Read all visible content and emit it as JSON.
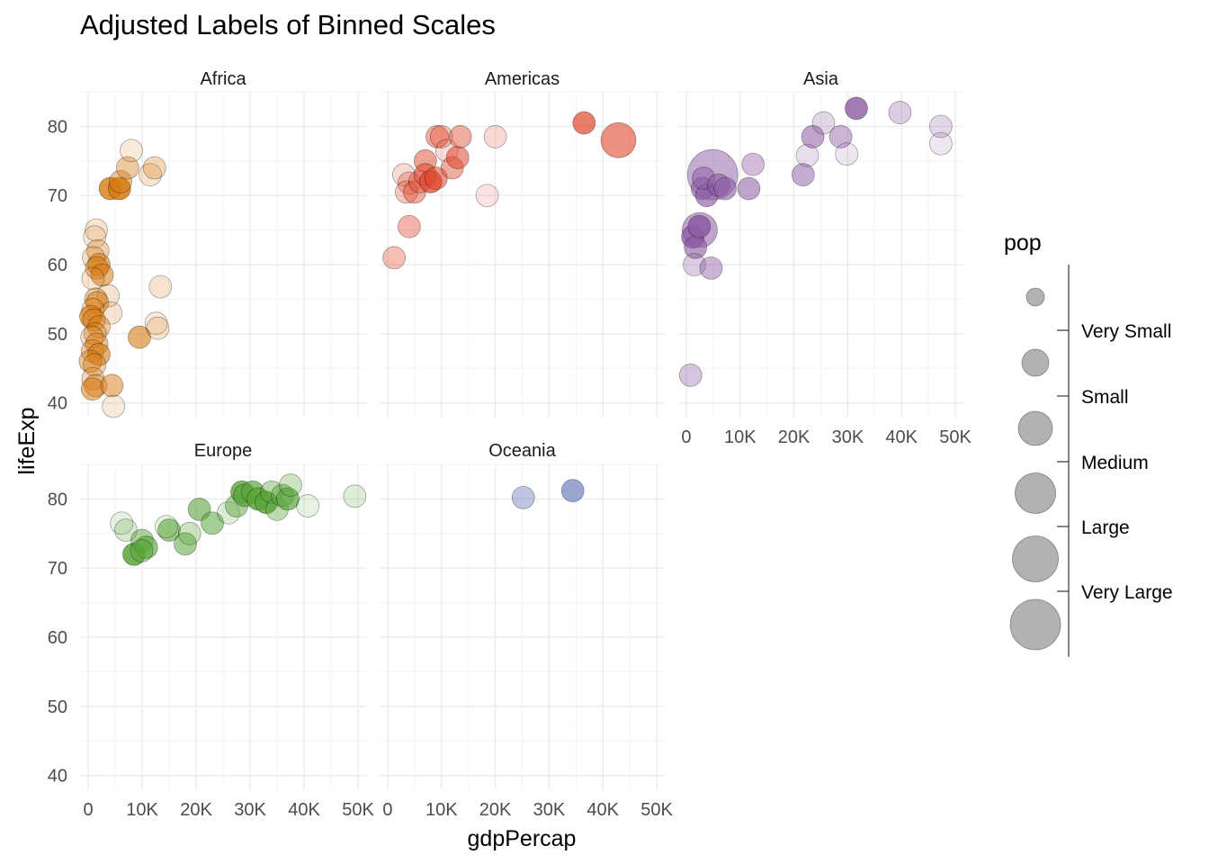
{
  "title": "Adjusted Labels of Binned Scales",
  "chart_data": {
    "type": "scatter",
    "title": "Adjusted Labels of Binned Scales",
    "xlabel": "gdpPercap",
    "ylabel": "lifeExp",
    "xlim": [
      -1500,
      51500
    ],
    "ylim": [
      38,
      85
    ],
    "x_ticks": [
      0,
      10000,
      20000,
      30000,
      40000,
      50000
    ],
    "x_tick_labels": [
      "0",
      "10K",
      "20K",
      "30K",
      "40K",
      "50K"
    ],
    "y_ticks": [
      40,
      50,
      60,
      70,
      80
    ],
    "y_tick_labels": [
      "40",
      "50",
      "60",
      "70",
      "80"
    ],
    "grid": true,
    "legend": {
      "title": "pop",
      "position": "right",
      "labels": [
        "Very Small",
        "Small",
        "Medium",
        "Large",
        "Very Large"
      ],
      "size_levels": [
        1,
        2,
        3,
        4,
        5,
        6
      ],
      "color": "#7f7f7f"
    },
    "facets": [
      {
        "name": "Africa",
        "color": "#d77a12",
        "points": [
          [
            1500,
            65,
            2,
            0.2
          ],
          [
            1200,
            64,
            2,
            0.15
          ],
          [
            1800,
            62,
            2,
            0.35
          ],
          [
            1000,
            61,
            2,
            0.25
          ],
          [
            2000,
            60,
            2,
            0.6
          ],
          [
            1600,
            59.5,
            2,
            0.45
          ],
          [
            2600,
            58.5,
            2,
            0.55
          ],
          [
            900,
            58,
            2,
            0.2
          ],
          [
            3700,
            55.5,
            2,
            0.2
          ],
          [
            1400,
            55,
            2,
            0.4
          ],
          [
            1700,
            54.5,
            2,
            0.5
          ],
          [
            900,
            53.5,
            2,
            0.25
          ],
          [
            4200,
            53,
            2,
            0.2
          ],
          [
            500,
            52.5,
            2,
            0.7
          ],
          [
            1100,
            52,
            2,
            0.45
          ],
          [
            2000,
            51,
            2,
            0.4
          ],
          [
            1300,
            50,
            2,
            0.35
          ],
          [
            700,
            49.5,
            2,
            0.25
          ],
          [
            1600,
            48.5,
            2,
            0.45
          ],
          [
            800,
            47.5,
            2,
            0.4
          ],
          [
            2000,
            47,
            2,
            0.6
          ],
          [
            400,
            46,
            2,
            0.45
          ],
          [
            1200,
            45.5,
            2,
            0.35
          ],
          [
            900,
            43.5,
            2,
            0.3
          ],
          [
            1400,
            42.5,
            2,
            0.4
          ],
          [
            800,
            42,
            2,
            0.55
          ],
          [
            4400,
            42.5,
            2,
            0.5
          ],
          [
            4700,
            39.5,
            2,
            0.15
          ],
          [
            4100,
            71,
            2,
            0.8
          ],
          [
            5800,
            71,
            2,
            0.85
          ],
          [
            6000,
            72,
            2,
            0.45
          ],
          [
            7300,
            74,
            2,
            0.4
          ],
          [
            8000,
            76.5,
            2,
            0.15
          ],
          [
            11500,
            73,
            2,
            0.2
          ],
          [
            12300,
            74,
            2,
            0.3
          ],
          [
            9500,
            49.5,
            2,
            0.6
          ],
          [
            13400,
            56.8,
            2,
            0.2
          ],
          [
            12600,
            51.5,
            2,
            0.15
          ],
          [
            12900,
            50.8,
            2,
            0.2
          ]
        ]
      },
      {
        "name": "Americas",
        "color": "#e0462c",
        "points": [
          [
            1200,
            61,
            2,
            0.35
          ],
          [
            3000,
            73,
            2,
            0.2
          ],
          [
            4000,
            71.8,
            2,
            0.3
          ],
          [
            3500,
            70.5,
            2,
            0.3
          ],
          [
            5000,
            70.5,
            2,
            0.45
          ],
          [
            6000,
            72,
            2,
            0.35
          ],
          [
            7000,
            75,
            2,
            0.5
          ],
          [
            7000,
            73,
            2,
            0.55
          ],
          [
            8000,
            72,
            2,
            0.75
          ],
          [
            9000,
            72.5,
            2,
            0.55
          ],
          [
            9200,
            78.5,
            2,
            0.45
          ],
          [
            10000,
            78.5,
            2,
            0.3
          ],
          [
            11000,
            76.5,
            2,
            0.2
          ],
          [
            12000,
            74,
            2,
            0.45
          ],
          [
            13000,
            75.5,
            2,
            0.55
          ],
          [
            13500,
            78.5,
            2,
            0.45
          ],
          [
            4000,
            65.5,
            2,
            0.4
          ],
          [
            18500,
            70,
            2,
            0.15
          ],
          [
            20000,
            78.5,
            2,
            0.2
          ],
          [
            36500,
            80.5,
            2,
            0.7
          ],
          [
            42900,
            78,
            5,
            0.6
          ]
        ]
      },
      {
        "name": "Asia",
        "color": "#8c5aa3",
        "points": [
          [
            4900,
            73,
            6,
            0.5
          ],
          [
            2500,
            65,
            5,
            0.55
          ],
          [
            1200,
            64,
            2,
            0.75
          ],
          [
            1700,
            62.5,
            2,
            0.6
          ],
          [
            2400,
            65.5,
            2,
            0.85
          ],
          [
            1500,
            60,
            2,
            0.3
          ],
          [
            4600,
            59.5,
            2,
            0.45
          ],
          [
            3000,
            71,
            2,
            0.6
          ],
          [
            3800,
            70,
            2,
            0.65
          ],
          [
            3200,
            72.5,
            2,
            0.5
          ],
          [
            6000,
            71.5,
            2,
            0.55
          ],
          [
            7200,
            71,
            2,
            0.6
          ],
          [
            11600,
            71,
            2,
            0.55
          ],
          [
            12400,
            74.5,
            2,
            0.4
          ],
          [
            800,
            44,
            2,
            0.35
          ],
          [
            21700,
            73,
            2,
            0.5
          ],
          [
            22500,
            75.8,
            2,
            0.2
          ],
          [
            23500,
            78.5,
            2,
            0.55
          ],
          [
            25500,
            80.5,
            2,
            0.25
          ],
          [
            28700,
            78.5,
            2,
            0.45
          ],
          [
            29800,
            76,
            2,
            0.15
          ],
          [
            31600,
            82.6,
            2,
            0.8
          ],
          [
            39700,
            82,
            2,
            0.3
          ],
          [
            47300,
            80,
            2,
            0.25
          ],
          [
            47300,
            77.5,
            2,
            0.15
          ]
        ]
      },
      {
        "name": "Europe",
        "color": "#5aa53a",
        "points": [
          [
            6200,
            76.5,
            2,
            0.15
          ],
          [
            7000,
            75.5,
            2,
            0.25
          ],
          [
            8500,
            72,
            2,
            0.85
          ],
          [
            10000,
            74,
            2,
            0.5
          ],
          [
            10800,
            73,
            2,
            0.65
          ],
          [
            9900,
            72.5,
            2,
            0.55
          ],
          [
            15000,
            75.5,
            2,
            0.6
          ],
          [
            18000,
            73.5,
            2,
            0.55
          ],
          [
            18800,
            75,
            2,
            0.3
          ],
          [
            14500,
            76,
            2,
            0.15
          ],
          [
            20600,
            78.5,
            2,
            0.6
          ],
          [
            23000,
            76.5,
            2,
            0.55
          ],
          [
            26000,
            78,
            2,
            0.2
          ],
          [
            27500,
            79,
            2,
            0.5
          ],
          [
            28500,
            81,
            2,
            0.8
          ],
          [
            29000,
            80.5,
            2,
            0.75
          ],
          [
            30500,
            81,
            2,
            0.7
          ],
          [
            31500,
            80,
            2,
            0.85
          ],
          [
            33000,
            79.5,
            2,
            0.85
          ],
          [
            34000,
            81,
            2,
            0.4
          ],
          [
            35000,
            78.5,
            2,
            0.4
          ],
          [
            36000,
            80.5,
            2,
            0.5
          ],
          [
            37000,
            80,
            2,
            0.7
          ],
          [
            37500,
            82,
            2,
            0.3
          ],
          [
            40700,
            79,
            2,
            0.15
          ],
          [
            49400,
            80.4,
            2,
            0.2
          ]
        ]
      },
      {
        "name": "Oceania",
        "color": "#6f7fbf",
        "points": [
          [
            25200,
            80.2,
            2,
            0.45
          ],
          [
            34400,
            81.2,
            2,
            0.7
          ]
        ]
      }
    ]
  }
}
